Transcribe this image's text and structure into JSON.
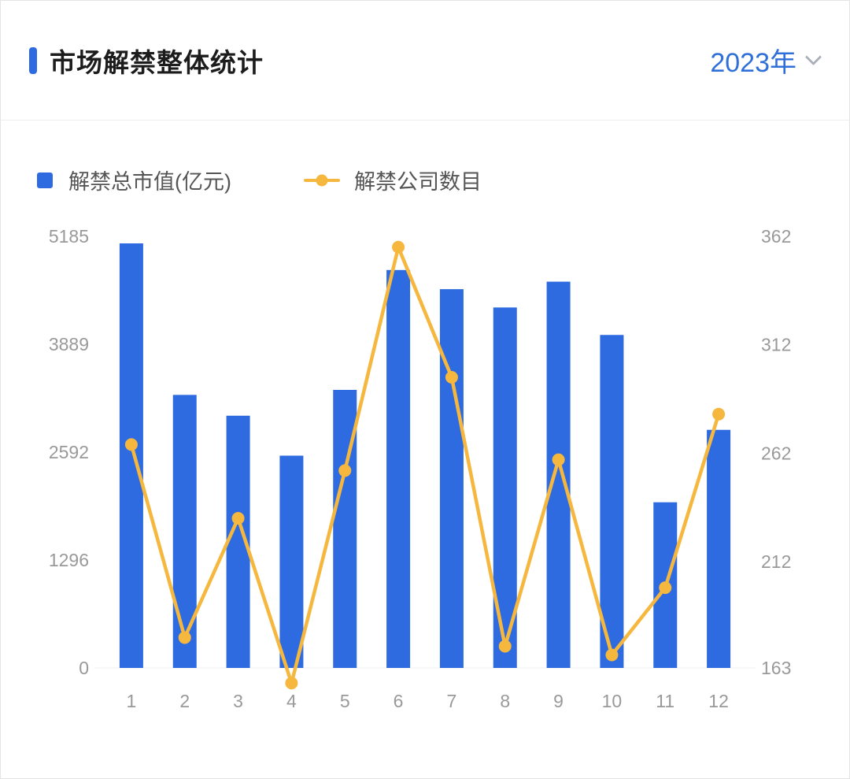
{
  "header": {
    "title": "市场解禁整体统计",
    "year_selector": {
      "value": "2023年"
    }
  },
  "legend": [
    {
      "label": "解禁总市值(亿元)",
      "type": "bar",
      "color": "#2e6be0"
    },
    {
      "label": "解禁公司数目",
      "type": "line",
      "color": "#f5b73e"
    }
  ],
  "colors": {
    "bar_blue": "#2e6be0",
    "line_yellow": "#f5b73e",
    "accent_blue": "#2f6fd9",
    "axis_text": "#999999"
  },
  "chart_data": {
    "type": "bar+line combo",
    "title": "市场解禁整体统计 2023年",
    "categories": [
      "1",
      "2",
      "3",
      "4",
      "5",
      "6",
      "7",
      "8",
      "9",
      "10",
      "11",
      "12"
    ],
    "series": [
      {
        "name": "解禁总市值(亿元)",
        "type": "bar",
        "axis": "left",
        "color": "#2e6be0",
        "values": [
          5100,
          3280,
          3030,
          2550,
          3340,
          4780,
          4550,
          4330,
          4640,
          4000,
          1990,
          2860
        ]
      },
      {
        "name": "解禁公司数目",
        "type": "line",
        "axis": "right",
        "color": "#f5b73e",
        "values": [
          266,
          177,
          232,
          156,
          254,
          357,
          297,
          173,
          259,
          169,
          200,
          280
        ]
      }
    ],
    "left_axis": {
      "ticks": [
        0,
        1296,
        2592,
        3889,
        5185
      ],
      "range": [
        0,
        5185
      ]
    },
    "right_axis": {
      "ticks": [
        163,
        212,
        262,
        312,
        362
      ],
      "range": [
        163,
        362
      ]
    },
    "grid": false,
    "legend_position": "top-left"
  }
}
